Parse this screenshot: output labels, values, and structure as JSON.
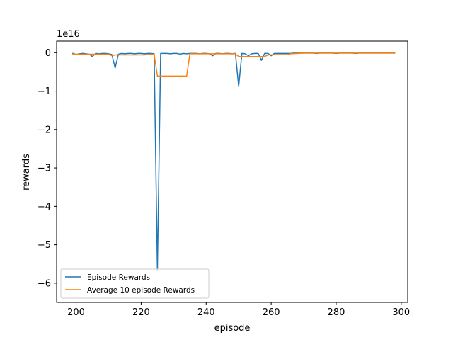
{
  "chart_data": {
    "type": "line",
    "title": "",
    "xlabel": "episode",
    "ylabel": "rewards",
    "y_offset_label": "1e16",
    "y_scale": 1e+16,
    "xlim": [
      194,
      302
    ],
    "ylim": [
      -6.5,
      0.3
    ],
    "x_ticks": [
      200,
      220,
      240,
      260,
      280,
      300
    ],
    "x_tick_labels": [
      "200",
      "220",
      "240",
      "260",
      "280",
      "300"
    ],
    "y_ticks": [
      0,
      -1,
      -2,
      -3,
      -4,
      -5,
      -6
    ],
    "y_tick_labels": [
      "0",
      "−1",
      "−2",
      "−3",
      "−4",
      "−5",
      "−6"
    ],
    "grid": false,
    "legend_position": "lower-left",
    "series": [
      {
        "name": "Episode Rewards",
        "color": "#1f77b4",
        "x": [
          199,
          200,
          201,
          202,
          203,
          204,
          205,
          206,
          207,
          208,
          209,
          210,
          211,
          212,
          213,
          214,
          215,
          216,
          217,
          218,
          219,
          220,
          221,
          222,
          223,
          224,
          225,
          226,
          227,
          228,
          229,
          230,
          231,
          232,
          233,
          234,
          235,
          236,
          237,
          238,
          239,
          240,
          241,
          242,
          243,
          244,
          245,
          246,
          247,
          248,
          249,
          250,
          251,
          252,
          253,
          254,
          255,
          256,
          257,
          258,
          259,
          260,
          261,
          262,
          263,
          264,
          265,
          266,
          267,
          268,
          269,
          270,
          271,
          272,
          273,
          274,
          275,
          276,
          277,
          278,
          279,
          280,
          281,
          282,
          283,
          284,
          285,
          286,
          287,
          288,
          289,
          290,
          291,
          292,
          293,
          294,
          295,
          296,
          297,
          298
        ],
        "y": [
          -0.02,
          -0.05,
          -0.03,
          -0.02,
          -0.03,
          -0.04,
          -0.1,
          -0.02,
          -0.03,
          -0.02,
          -0.02,
          -0.03,
          -0.05,
          -0.4,
          -0.04,
          -0.02,
          -0.03,
          -0.02,
          -0.02,
          -0.03,
          -0.02,
          -0.02,
          -0.03,
          -0.02,
          -0.02,
          -0.03,
          -5.67,
          -0.02,
          -0.02,
          -0.02,
          -0.03,
          -0.02,
          -0.02,
          -0.04,
          -0.02,
          -0.03,
          -0.02,
          -0.02,
          -0.02,
          -0.03,
          -0.02,
          -0.02,
          -0.03,
          -0.08,
          -0.02,
          -0.02,
          -0.03,
          -0.02,
          -0.02,
          -0.03,
          -0.02,
          -0.88,
          -0.02,
          -0.03,
          -0.08,
          -0.03,
          -0.02,
          -0.02,
          -0.2,
          -0.02,
          -0.02,
          -0.08,
          -0.02,
          -0.02,
          -0.02,
          -0.02,
          -0.02,
          -0.02,
          -0.01,
          -0.01,
          -0.01,
          -0.01,
          -0.01,
          -0.01,
          -0.01,
          -0.02,
          -0.01,
          -0.01,
          -0.01,
          -0.01,
          -0.01,
          -0.02,
          -0.01,
          -0.01,
          -0.01,
          -0.01,
          -0.01,
          -0.02,
          -0.01,
          -0.01,
          -0.01,
          -0.01,
          -0.01,
          -0.01,
          -0.01,
          -0.01,
          -0.01,
          -0.01,
          -0.01,
          -0.01
        ]
      },
      {
        "name": "Average 10 episode Rewards",
        "color": "#ff7f0e",
        "x": [
          199,
          210,
          211,
          212,
          221,
          222,
          223,
          224,
          225,
          230,
          234,
          235,
          240,
          244,
          249,
          250,
          255,
          258,
          259,
          262,
          265,
          266,
          268,
          270,
          298
        ],
        "y": [
          -0.04,
          -0.04,
          -0.08,
          -0.06,
          -0.06,
          -0.05,
          -0.04,
          -0.04,
          -0.61,
          -0.61,
          -0.61,
          -0.03,
          -0.03,
          -0.03,
          -0.03,
          -0.1,
          -0.1,
          -0.1,
          -0.06,
          -0.05,
          -0.05,
          -0.03,
          -0.02,
          -0.01,
          -0.01
        ]
      }
    ]
  }
}
